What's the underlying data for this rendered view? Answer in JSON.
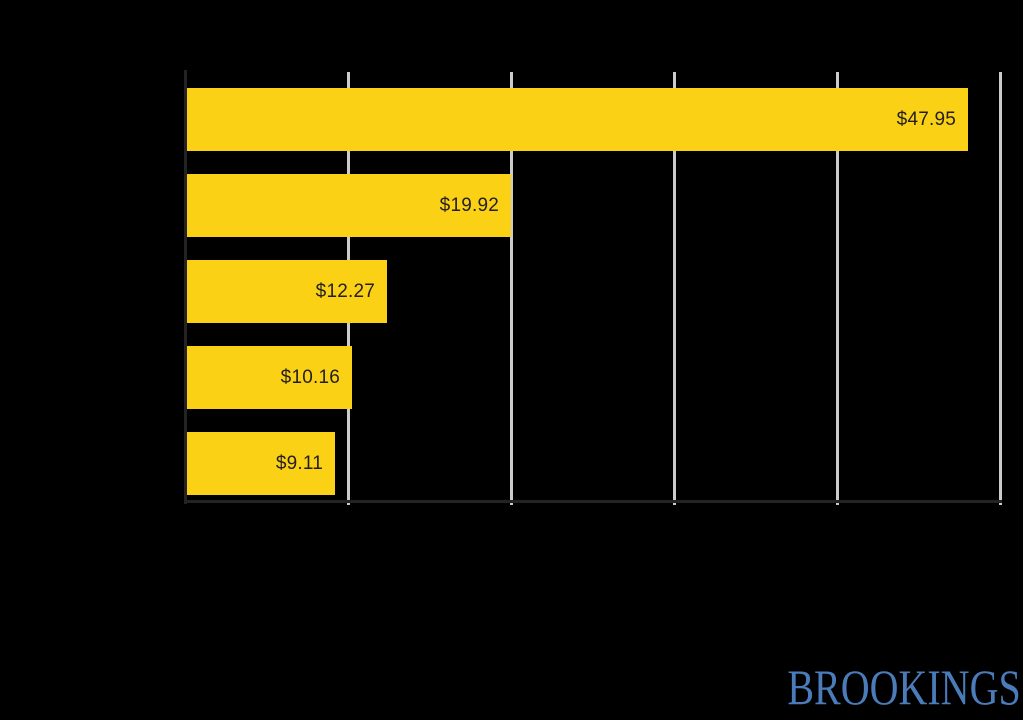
{
  "background_color": "#000000",
  "chart_data": {
    "type": "bar",
    "orientation": "horizontal",
    "bars": [
      {
        "label": "$47.95",
        "value": 47.95
      },
      {
        "label": "$19.92",
        "value": 19.92
      },
      {
        "label": "$12.27",
        "value": 12.27
      },
      {
        "label": "$10.16",
        "value": 10.16
      },
      {
        "label": "$9.11",
        "value": 9.11
      }
    ],
    "xlim": [
      0,
      50
    ],
    "gridline_step": 10,
    "grid": true,
    "value_labels_inside_bars": true,
    "bar_color": "#FBD116",
    "value_label_color": "#231F20",
    "gridline_color": "#CBCBCB",
    "axis_line_color": "#232323"
  },
  "branding": {
    "logo_text": "BROOKINGS",
    "logo_color": "#4A7CBA"
  }
}
